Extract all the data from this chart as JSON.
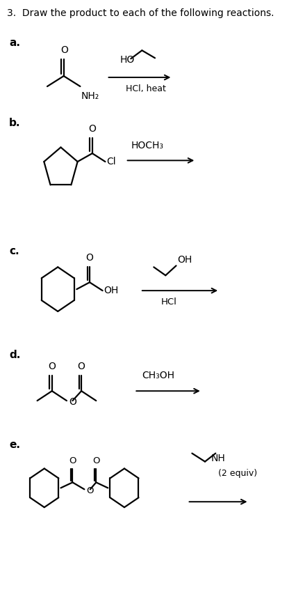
{
  "title": "3.  Draw the product to each of the following reactions.",
  "background": "#ffffff",
  "text_color": "#000000",
  "labels": [
    "a.",
    "b.",
    "c.",
    "d.",
    "e."
  ],
  "reagent_a_above": "HO",
  "reagent_a_below": "HCl, heat",
  "reagent_b": "HOCH₃",
  "reagent_c_above": "OH",
  "reagent_c_below": "HCl",
  "reagent_d": "CH₃OH",
  "reagent_e_amine": "NH",
  "reagent_e_equiv": "(2 equiv)"
}
